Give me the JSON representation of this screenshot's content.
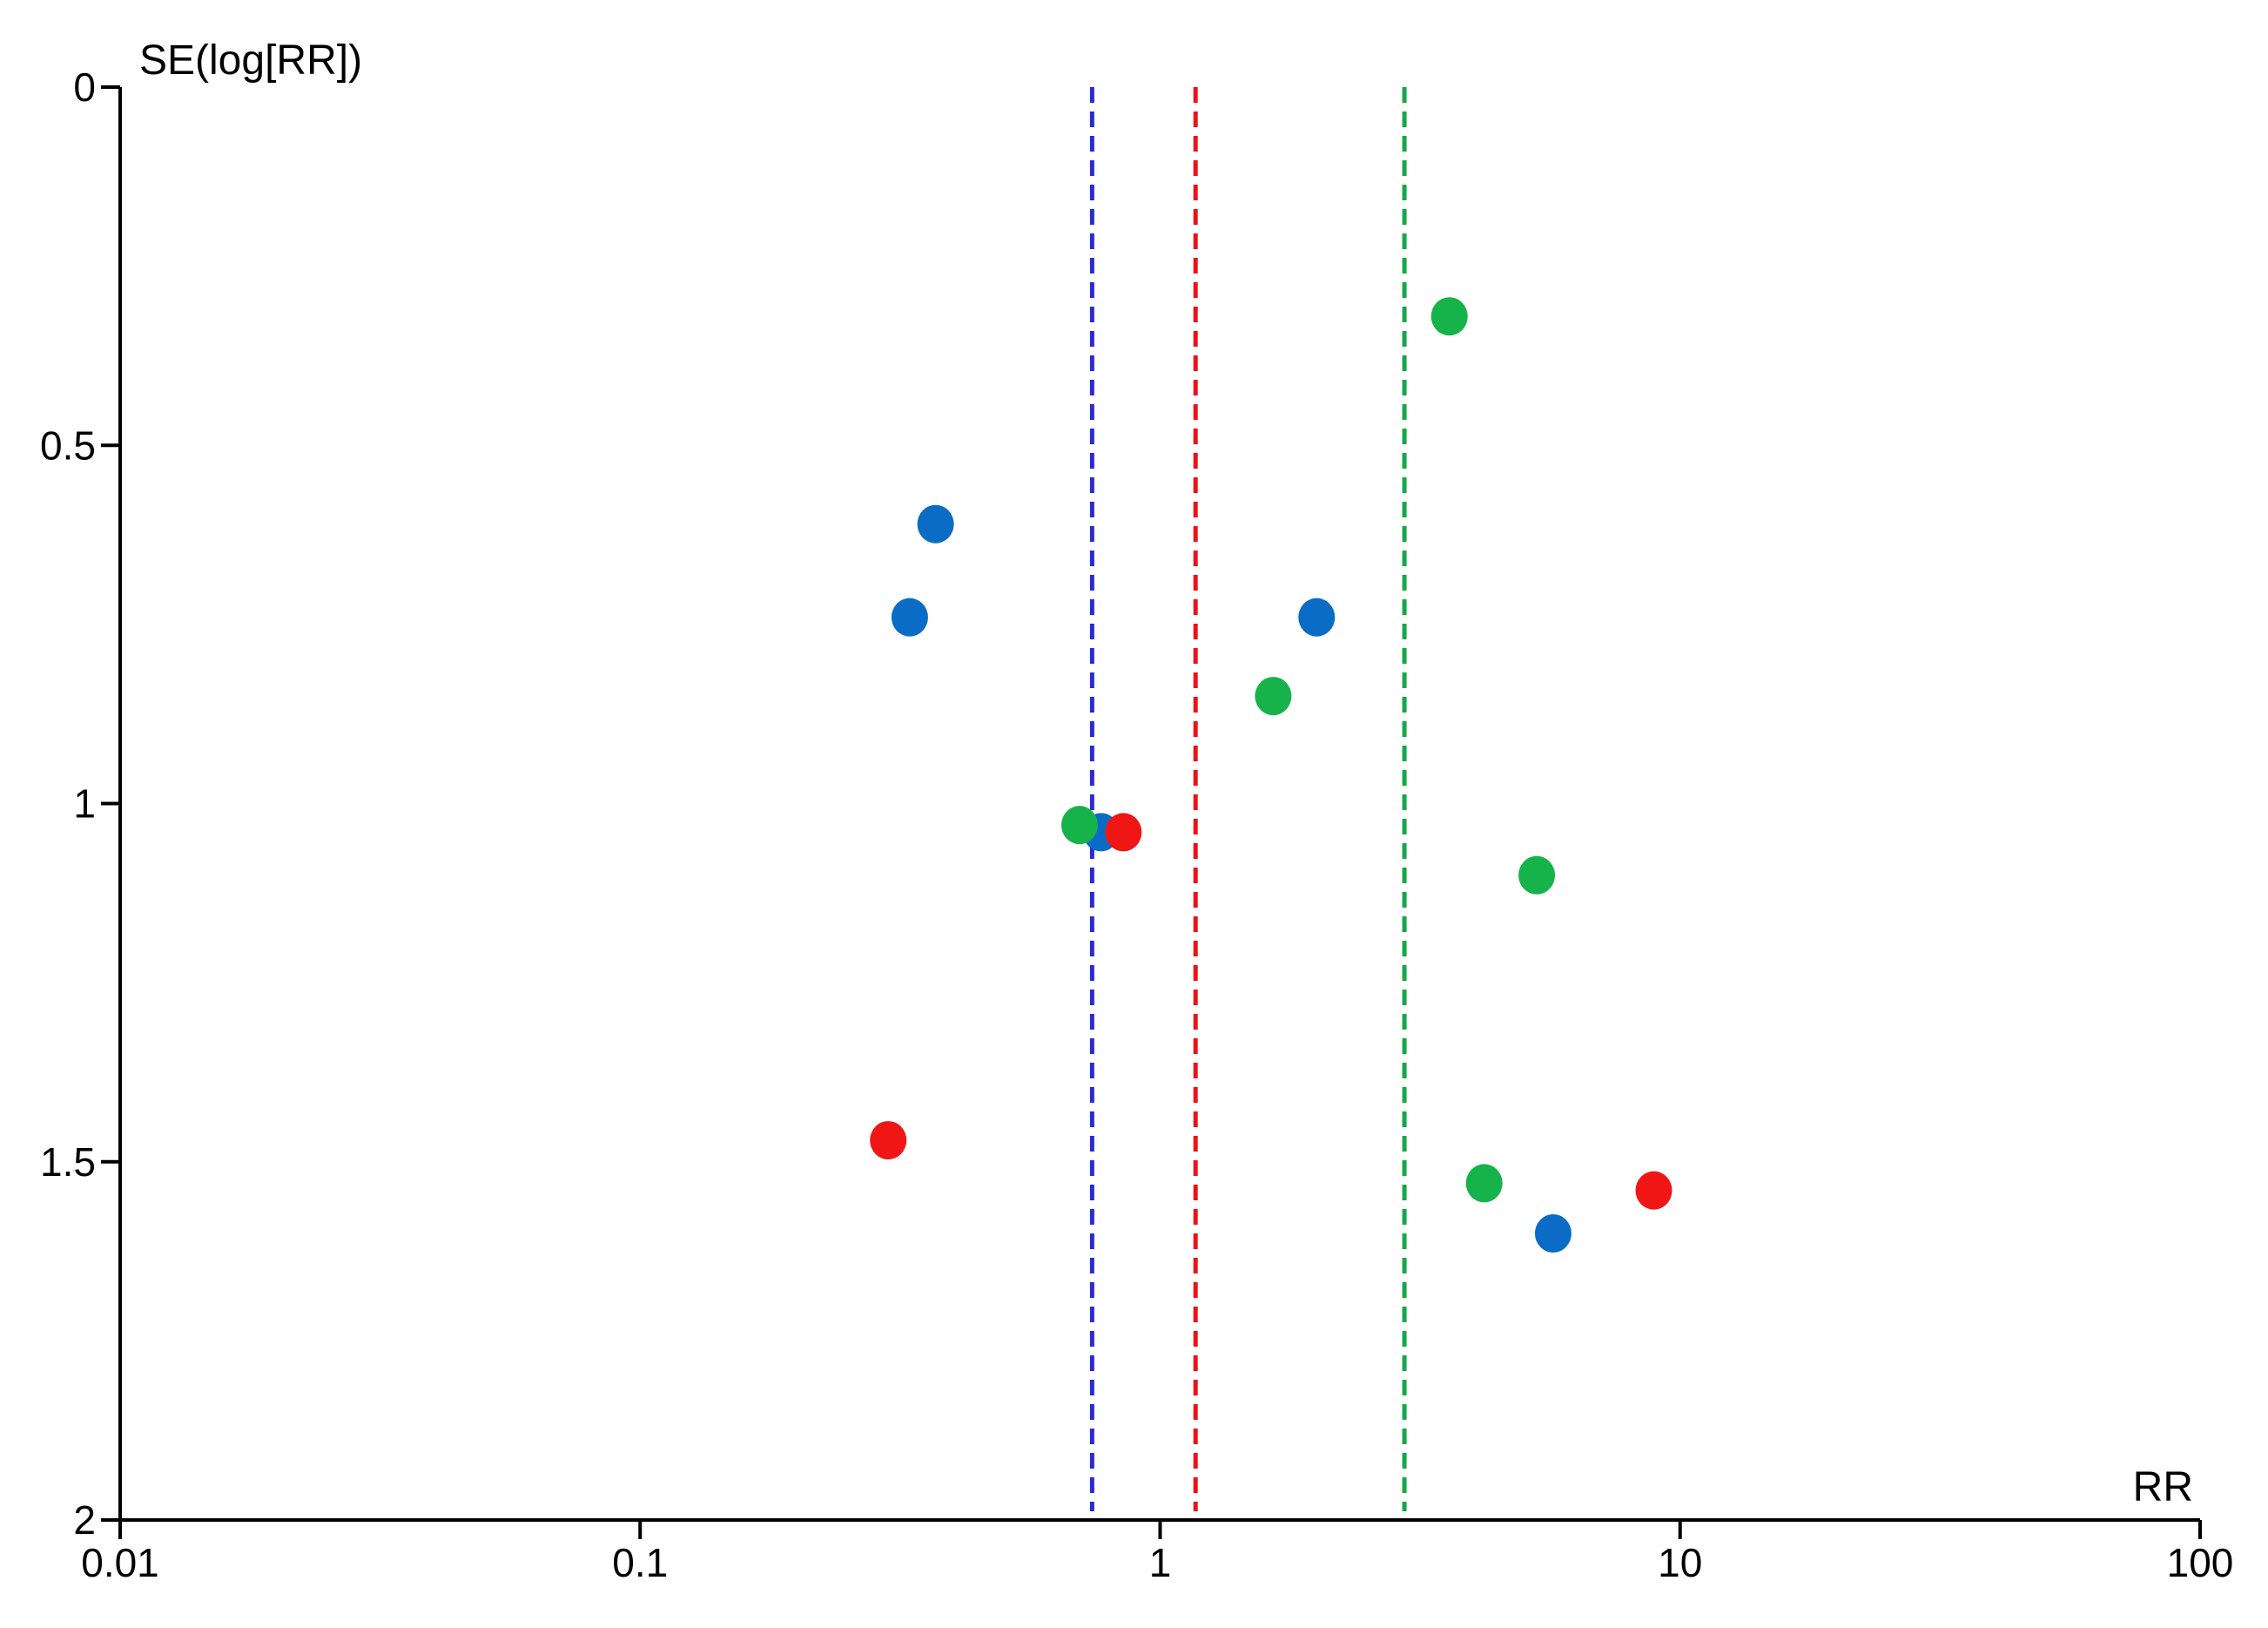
{
  "chart_data": {
    "type": "scatter",
    "title": "",
    "xlabel": "RR",
    "ylabel": "SE(log[RR])",
    "x_scale": "log",
    "xlim": [
      0.01,
      100
    ],
    "ylim": [
      0,
      2
    ],
    "y_inverted": true,
    "grid": false,
    "x_ticks": [
      {
        "value": 0.01,
        "label": "0.01"
      },
      {
        "value": 0.1,
        "label": "0.1"
      },
      {
        "value": 1,
        "label": "1"
      },
      {
        "value": 10,
        "label": "10"
      },
      {
        "value": 100,
        "label": "100"
      }
    ],
    "y_ticks": [
      {
        "value": 0,
        "label": "0"
      },
      {
        "value": 0.5,
        "label": "0.5"
      },
      {
        "value": 1,
        "label": "1"
      },
      {
        "value": 1.5,
        "label": "1.5"
      },
      {
        "value": 2,
        "label": "2"
      }
    ],
    "reference_lines": [
      {
        "x": 0.74,
        "color": "#2b2bd6"
      },
      {
        "x": 1.17,
        "color": "#e8141b"
      },
      {
        "x": 2.95,
        "color": "#14a84a"
      }
    ],
    "series": [
      {
        "color": "#0a6cc4",
        "points": [
          {
            "x": 0.37,
            "y": 0.61
          },
          {
            "x": 0.33,
            "y": 0.74
          },
          {
            "x": 2.0,
            "y": 0.74
          },
          {
            "x": 0.77,
            "y": 1.04
          },
          {
            "x": 5.7,
            "y": 1.6
          }
        ]
      },
      {
        "color": "#16b34a",
        "points": [
          {
            "x": 3.6,
            "y": 0.32
          },
          {
            "x": 1.65,
            "y": 0.85
          },
          {
            "x": 0.7,
            "y": 1.03
          },
          {
            "x": 5.3,
            "y": 1.1
          },
          {
            "x": 4.2,
            "y": 1.53
          }
        ]
      },
      {
        "color": "#f01616",
        "points": [
          {
            "x": 0.85,
            "y": 1.04
          },
          {
            "x": 0.3,
            "y": 1.47
          },
          {
            "x": 8.9,
            "y": 1.54
          }
        ]
      }
    ]
  }
}
